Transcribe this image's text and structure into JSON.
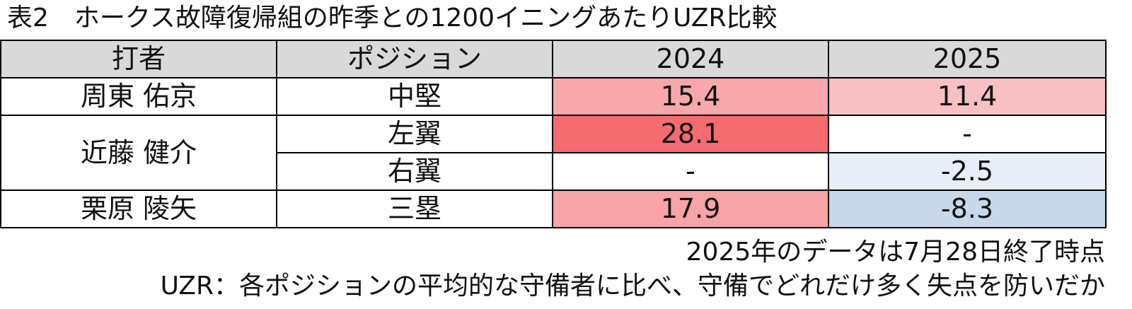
{
  "title": "表2　ホークス故障復帰組の昨季との1200イニングあたりUZR比較",
  "table": {
    "header": [
      "打者",
      "ポジション",
      "2024",
      "2025"
    ],
    "rows": [
      [
        "周東 佑京",
        "中堅",
        15.4,
        11.4
      ],
      [
        "近藤 健介",
        "左翼",
        28.1,
        "-"
      ],
      [
        null,
        "右翼",
        "-",
        -2.5
      ],
      [
        "栗原 陵矢",
        "三塁",
        17.9,
        -8.3
      ]
    ]
  },
  "notes": [
    "2025年のデータは7月28日終了時点",
    "UZR：各ポジションの平均的な守備者に比べ、守備でどれだけ多く失点を防いだか"
  ]
}
